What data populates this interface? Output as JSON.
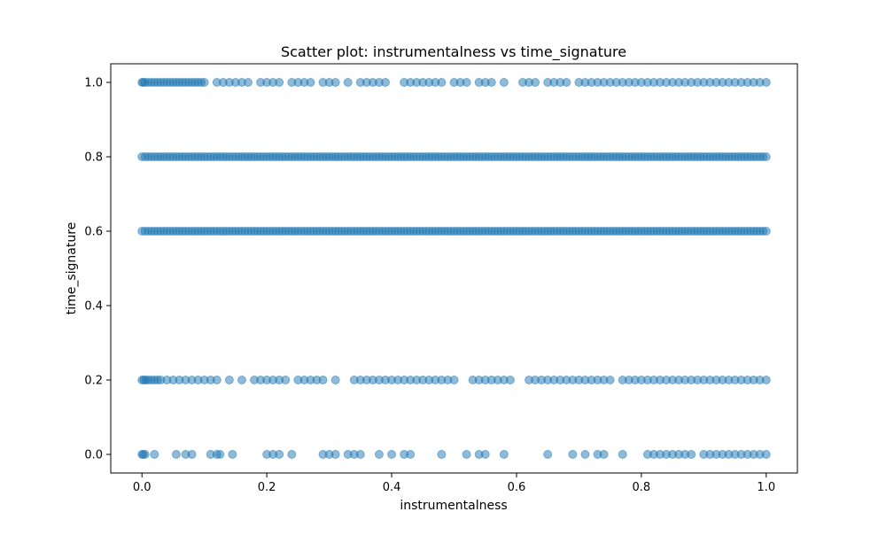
{
  "chart_data": {
    "type": "scatter",
    "title": "Scatter plot: instrumentalness vs time_signature",
    "xlabel": "instrumentalness",
    "ylabel": "time_signature",
    "xlim": [
      -0.05,
      1.05
    ],
    "ylim": [
      -0.05,
      1.05
    ],
    "x_ticks": [
      "0.0",
      "0.2",
      "0.4",
      "0.6",
      "0.8",
      "1.0"
    ],
    "y_ticks": [
      "0.0",
      "0.2",
      "0.4",
      "0.6",
      "0.8",
      "1.0"
    ],
    "grid": false,
    "marker_color": "#1f77b4",
    "marker_alpha": 0.5,
    "series": [
      {
        "y": 1.0,
        "x": [
          0.0,
          0.002,
          0.005,
          0.01,
          0.015,
          0.02,
          0.025,
          0.03,
          0.035,
          0.04,
          0.045,
          0.05,
          0.055,
          0.06,
          0.065,
          0.07,
          0.075,
          0.08,
          0.085,
          0.09,
          0.095,
          0.1,
          0.12,
          0.13,
          0.14,
          0.15,
          0.16,
          0.17,
          0.19,
          0.2,
          0.21,
          0.22,
          0.24,
          0.25,
          0.26,
          0.27,
          0.29,
          0.3,
          0.31,
          0.33,
          0.35,
          0.36,
          0.37,
          0.38,
          0.39,
          0.42,
          0.43,
          0.44,
          0.45,
          0.46,
          0.47,
          0.48,
          0.5,
          0.51,
          0.52,
          0.54,
          0.55,
          0.56,
          0.58,
          0.61,
          0.62,
          0.63,
          0.65,
          0.66,
          0.67,
          0.68,
          0.7,
          0.71,
          0.72,
          0.73,
          0.74,
          0.75,
          0.76,
          0.77,
          0.78,
          0.79,
          0.8,
          0.81,
          0.82,
          0.83,
          0.84,
          0.85,
          0.86,
          0.87,
          0.88,
          0.89,
          0.9,
          0.91,
          0.92,
          0.93,
          0.94,
          0.95,
          0.96,
          0.97,
          0.98,
          0.99,
          1.0
        ]
      },
      {
        "y": 0.8,
        "dense": true,
        "x_range": [
          0.0,
          1.0
        ]
      },
      {
        "y": 0.6,
        "dense": true,
        "x_range": [
          0.0,
          1.0
        ]
      },
      {
        "y": 0.2,
        "x": [
          0.0,
          0.003,
          0.006,
          0.01,
          0.015,
          0.02,
          0.025,
          0.03,
          0.04,
          0.05,
          0.06,
          0.07,
          0.08,
          0.09,
          0.1,
          0.11,
          0.12,
          0.14,
          0.16,
          0.18,
          0.19,
          0.2,
          0.21,
          0.22,
          0.23,
          0.25,
          0.26,
          0.27,
          0.28,
          0.29,
          0.31,
          0.34,
          0.35,
          0.36,
          0.37,
          0.38,
          0.39,
          0.4,
          0.41,
          0.42,
          0.43,
          0.44,
          0.45,
          0.46,
          0.47,
          0.48,
          0.49,
          0.5,
          0.53,
          0.54,
          0.55,
          0.56,
          0.57,
          0.58,
          0.59,
          0.62,
          0.63,
          0.64,
          0.65,
          0.66,
          0.67,
          0.68,
          0.69,
          0.7,
          0.71,
          0.72,
          0.73,
          0.74,
          0.75,
          0.77,
          0.78,
          0.79,
          0.8,
          0.81,
          0.82,
          0.83,
          0.84,
          0.85,
          0.86,
          0.87,
          0.88,
          0.89,
          0.9,
          0.91,
          0.92,
          0.93,
          0.94,
          0.95,
          0.96,
          0.97,
          0.98,
          0.99,
          1.0
        ]
      },
      {
        "y": 0.0,
        "x": [
          0.0,
          0.002,
          0.005,
          0.02,
          0.055,
          0.07,
          0.08,
          0.11,
          0.12,
          0.125,
          0.145,
          0.2,
          0.21,
          0.22,
          0.24,
          0.29,
          0.3,
          0.31,
          0.33,
          0.34,
          0.35,
          0.38,
          0.4,
          0.42,
          0.43,
          0.48,
          0.52,
          0.54,
          0.55,
          0.58,
          0.65,
          0.69,
          0.71,
          0.73,
          0.74,
          0.77,
          0.81,
          0.82,
          0.83,
          0.84,
          0.85,
          0.86,
          0.87,
          0.88,
          0.9,
          0.91,
          0.92,
          0.93,
          0.94,
          0.95,
          0.96,
          0.97,
          0.98,
          0.99,
          1.0
        ]
      }
    ]
  }
}
